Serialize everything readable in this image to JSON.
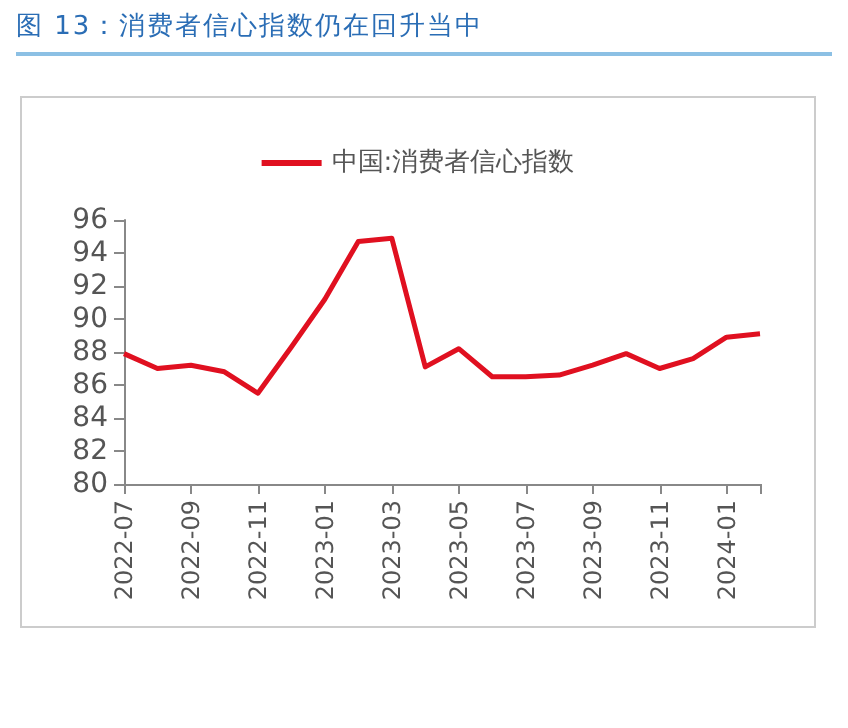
{
  "chart_data": {
    "type": "line",
    "title": "图 13：消费者信心指数仍在回升当中",
    "categories": [
      "2022-07",
      null,
      "2022-09",
      null,
      "2022-11",
      null,
      "2023-01",
      null,
      "2023-03",
      null,
      "2023-05",
      null,
      "2023-07",
      null,
      "2023-09",
      null,
      "2023-11",
      null,
      "2024-01",
      null
    ],
    "series": [
      {
        "name": "中国:消费者信心指数",
        "color": "#e01020",
        "values": [
          87.9,
          87.0,
          87.2,
          86.8,
          85.5,
          88.3,
          91.2,
          94.7,
          94.9,
          87.1,
          88.2,
          86.5,
          86.5,
          86.6,
          87.2,
          87.9,
          87.0,
          87.6,
          88.9,
          89.1
        ]
      }
    ],
    "ylim": [
      80,
      96
    ],
    "yticks": [
      80,
      82,
      84,
      86,
      88,
      90,
      92,
      94,
      96
    ],
    "grid": false,
    "legend": "top",
    "marker": "none",
    "line_style": "solid"
  }
}
